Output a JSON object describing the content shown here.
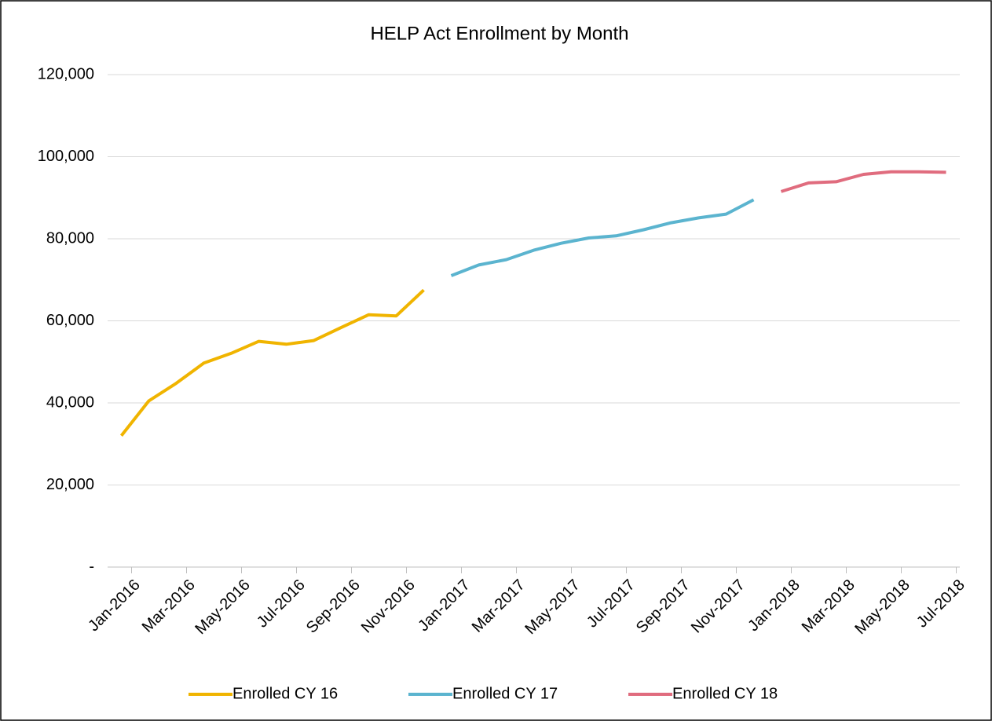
{
  "chart_data": {
    "type": "line",
    "title": "HELP Act Enrollment by Month",
    "categories": [
      "Jan-2016",
      null,
      "Mar-2016",
      null,
      "May-2016",
      null,
      "Jul-2016",
      null,
      "Sep-2016",
      null,
      "Nov-2016",
      null,
      "Jan-2017",
      null,
      "Mar-2017",
      null,
      "May-2017",
      null,
      "Jul-2017",
      null,
      "Sep-2017",
      null,
      "Nov-2017",
      null,
      "Jan-2018",
      null,
      "Mar-2018",
      null,
      "May-2018",
      null,
      "Jul-2018"
    ],
    "series": [
      {
        "name": "Enrolled CY 16",
        "color": "#f0b400",
        "values": [
          32000,
          40500,
          44800,
          49700,
          52100,
          55000,
          54300,
          55200,
          58400,
          61500,
          61200,
          67500,
          null,
          null,
          null,
          null,
          null,
          null,
          null,
          null,
          null,
          null,
          null,
          null,
          null,
          null,
          null,
          null,
          null,
          null,
          null
        ]
      },
      {
        "name": "Enrolled CY 17",
        "color": "#5bb4cf",
        "values": [
          null,
          null,
          null,
          null,
          null,
          null,
          null,
          null,
          null,
          null,
          null,
          null,
          71000,
          73600,
          74900,
          77200,
          78900,
          80200,
          80700,
          82200,
          83900,
          85100,
          86000,
          89500,
          null,
          null,
          null,
          null,
          null,
          null,
          null
        ]
      },
      {
        "name": "Enrolled CY 18",
        "color": "#e06c7e",
        "values": [
          null,
          null,
          null,
          null,
          null,
          null,
          null,
          null,
          null,
          null,
          null,
          null,
          null,
          null,
          null,
          null,
          null,
          null,
          null,
          null,
          null,
          null,
          null,
          null,
          91500,
          93600,
          93900,
          95700,
          96300,
          96300,
          96200
        ]
      }
    ],
    "ylim": [
      0,
      120000
    ],
    "yticks": [
      {
        "value": 0,
        "label": "-"
      },
      {
        "value": 20000,
        "label": "20,000"
      },
      {
        "value": 40000,
        "label": "40,000"
      },
      {
        "value": 60000,
        "label": "60,000"
      },
      {
        "value": 80000,
        "label": "80,000"
      },
      {
        "value": 100000,
        "label": "100,000"
      },
      {
        "value": 120000,
        "label": "120,000"
      }
    ],
    "grid": true,
    "legend": "bottom"
  }
}
